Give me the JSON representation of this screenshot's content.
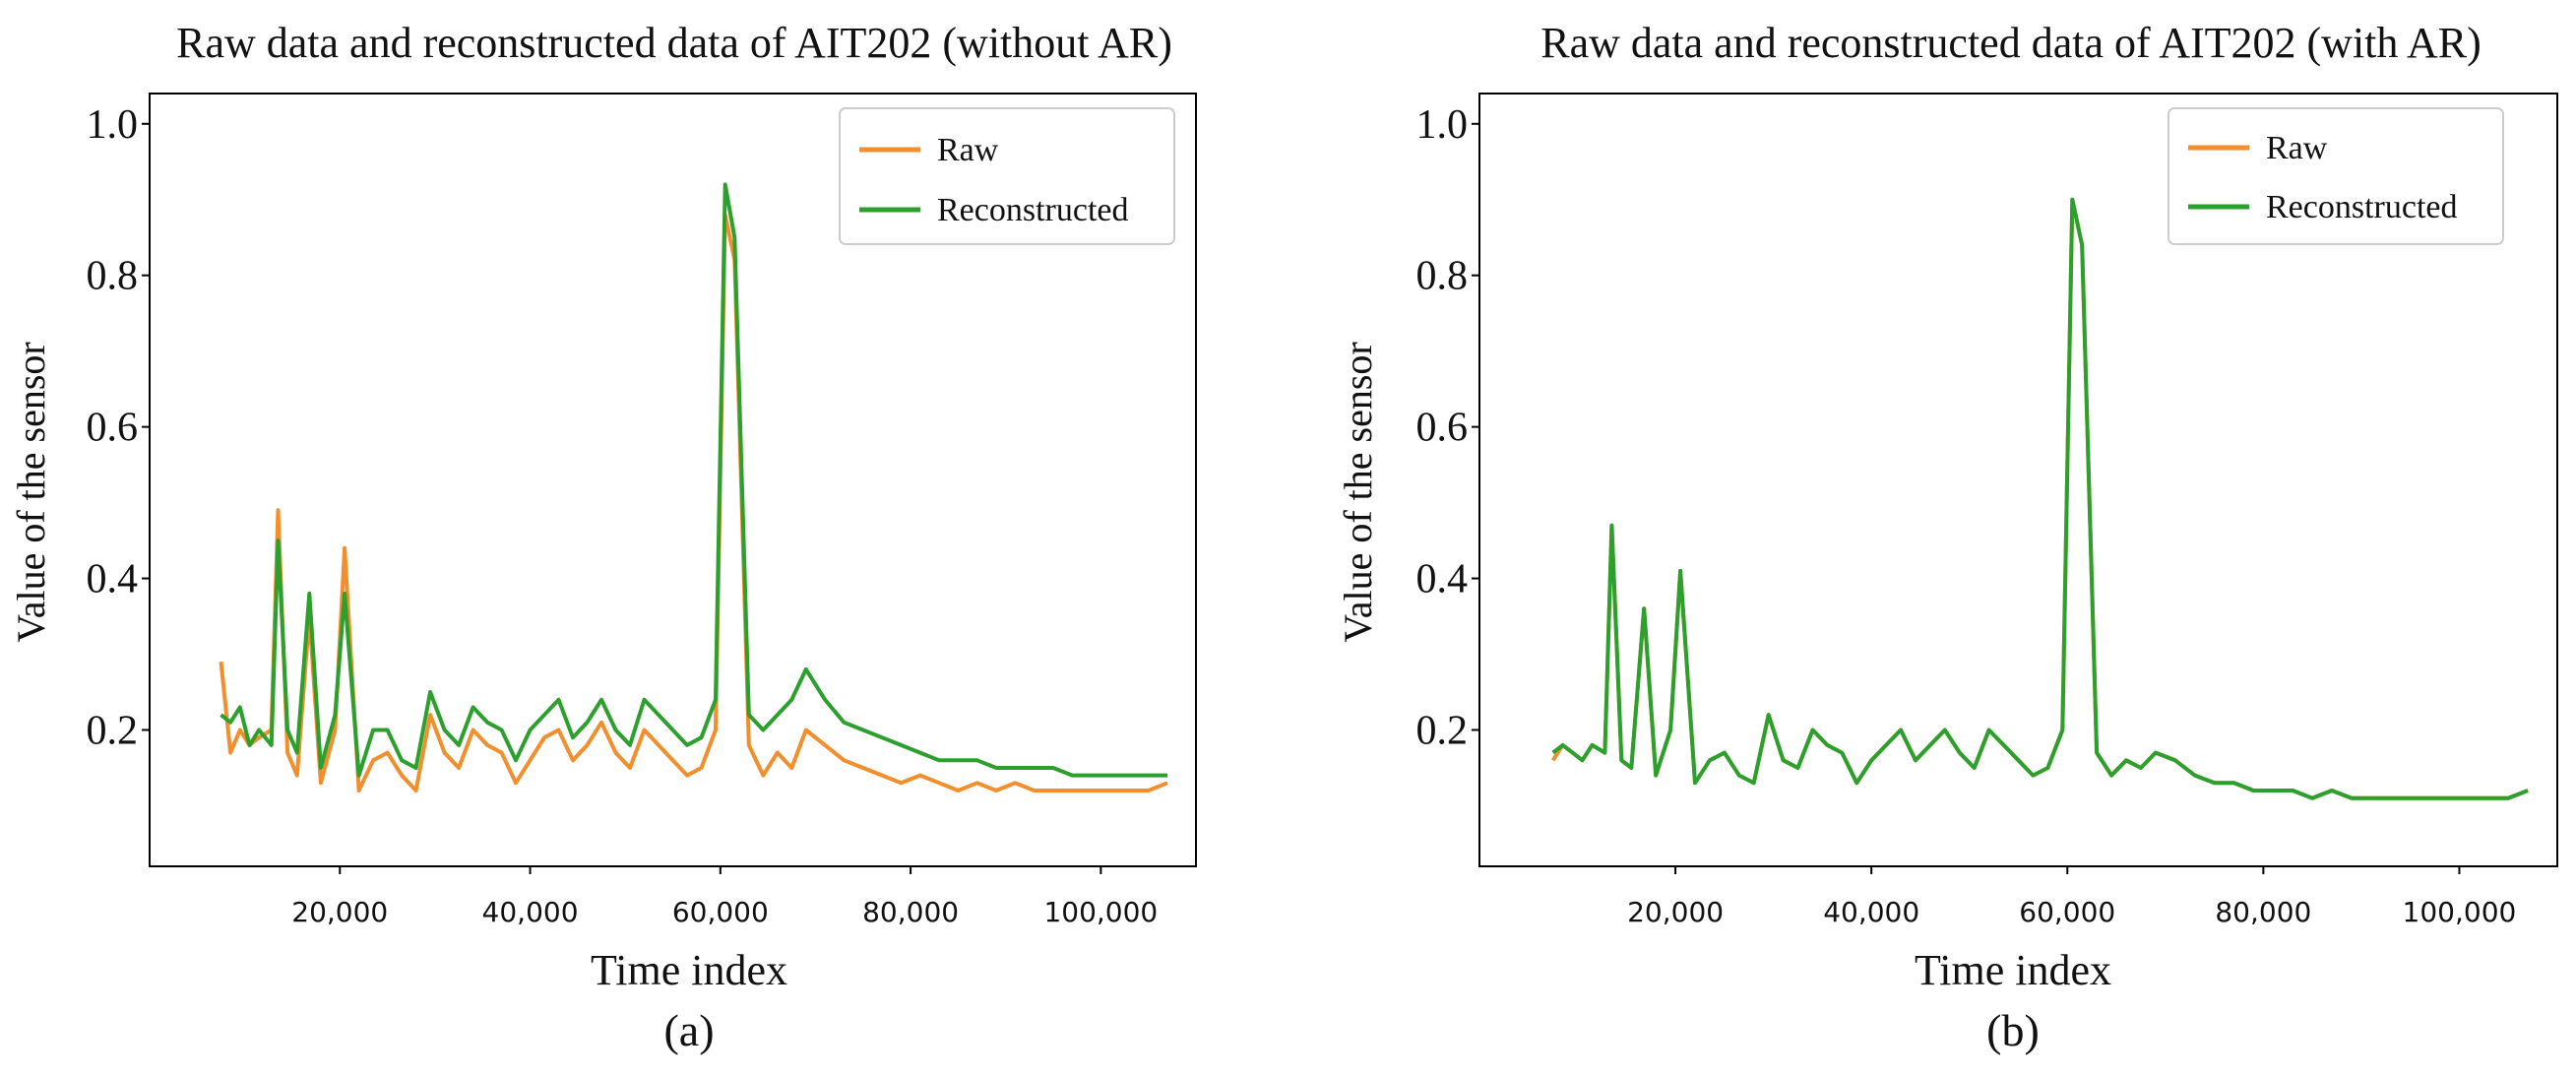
{
  "chart_data": [
    {
      "type": "line",
      "title": "Raw data and reconstructed data of AIT202 (without AR)",
      "xlabel": "Time index",
      "ylabel": "Value of the sensor",
      "caption": "(a)",
      "xlim": [
        0,
        110000
      ],
      "ylim": [
        0.02,
        1.04
      ],
      "xticks": [
        20000,
        40000,
        60000,
        80000,
        100000
      ],
      "xtick_labels": [
        "20,000",
        "40,000",
        "60,000",
        "80,000",
        "100,000"
      ],
      "yticks": [
        0.2,
        0.4,
        0.6,
        0.8,
        1.0
      ],
      "ytick_labels": [
        "0.2",
        "0.4",
        "0.6",
        "0.8",
        "1.0"
      ],
      "legend_position": "top-right",
      "series": [
        {
          "name": "Raw",
          "color": "#f28e2b",
          "x": [
            7500,
            8500,
            9500,
            10500,
            11500,
            12800,
            13500,
            14500,
            15500,
            16800,
            18000,
            19500,
            20500,
            22000,
            23500,
            25000,
            26500,
            28000,
            29500,
            31000,
            32500,
            34000,
            35500,
            37000,
            38500,
            40000,
            41500,
            43000,
            44500,
            46000,
            47500,
            49000,
            50500,
            52000,
            53500,
            55000,
            56500,
            58000,
            59500,
            60500,
            61500,
            63000,
            64500,
            66000,
            67500,
            69000,
            71000,
            73000,
            75000,
            77000,
            79000,
            81000,
            83000,
            85000,
            87000,
            89000,
            91000,
            93000,
            95000,
            97000,
            99000,
            101000,
            103000,
            105000,
            107000
          ],
          "y": [
            0.29,
            0.17,
            0.2,
            0.18,
            0.19,
            0.2,
            0.49,
            0.17,
            0.14,
            0.35,
            0.13,
            0.2,
            0.44,
            0.12,
            0.16,
            0.17,
            0.14,
            0.12,
            0.22,
            0.17,
            0.15,
            0.2,
            0.18,
            0.17,
            0.13,
            0.16,
            0.19,
            0.2,
            0.16,
            0.18,
            0.21,
            0.17,
            0.15,
            0.2,
            0.18,
            0.16,
            0.14,
            0.15,
            0.2,
            0.88,
            0.82,
            0.18,
            0.14,
            0.17,
            0.15,
            0.2,
            0.18,
            0.16,
            0.15,
            0.14,
            0.13,
            0.14,
            0.13,
            0.12,
            0.13,
            0.12,
            0.13,
            0.12,
            0.12,
            0.12,
            0.12,
            0.12,
            0.12,
            0.12,
            0.13
          ]
        },
        {
          "name": "Reconstructed",
          "color": "#2ca02c",
          "x": [
            7500,
            8500,
            9500,
            10500,
            11500,
            12800,
            13500,
            14500,
            15500,
            16800,
            18000,
            19500,
            20500,
            22000,
            23500,
            25000,
            26500,
            28000,
            29500,
            31000,
            32500,
            34000,
            35500,
            37000,
            38500,
            40000,
            41500,
            43000,
            44500,
            46000,
            47500,
            49000,
            50500,
            52000,
            53500,
            55000,
            56500,
            58000,
            59500,
            60500,
            61500,
            63000,
            64500,
            66000,
            67500,
            69000,
            71000,
            73000,
            75000,
            77000,
            79000,
            81000,
            83000,
            85000,
            87000,
            89000,
            91000,
            93000,
            95000,
            97000,
            99000,
            101000,
            103000,
            105000,
            107000
          ],
          "y": [
            0.22,
            0.21,
            0.23,
            0.18,
            0.2,
            0.18,
            0.45,
            0.2,
            0.17,
            0.38,
            0.15,
            0.22,
            0.38,
            0.14,
            0.2,
            0.2,
            0.16,
            0.15,
            0.25,
            0.2,
            0.18,
            0.23,
            0.21,
            0.2,
            0.16,
            0.2,
            0.22,
            0.24,
            0.19,
            0.21,
            0.24,
            0.2,
            0.18,
            0.24,
            0.22,
            0.2,
            0.18,
            0.19,
            0.24,
            0.92,
            0.85,
            0.22,
            0.2,
            0.22,
            0.24,
            0.28,
            0.24,
            0.21,
            0.2,
            0.19,
            0.18,
            0.17,
            0.16,
            0.16,
            0.16,
            0.15,
            0.15,
            0.15,
            0.15,
            0.14,
            0.14,
            0.14,
            0.14,
            0.14,
            0.14
          ]
        }
      ]
    },
    {
      "type": "line",
      "title": "Raw data and reconstructed data of AIT202 (with AR)",
      "xlabel": "Time index",
      "ylabel": "Value of the sensor",
      "caption": "(b)",
      "xlim": [
        0,
        110000
      ],
      "ylim": [
        0.02,
        1.04
      ],
      "xticks": [
        20000,
        40000,
        60000,
        80000,
        100000
      ],
      "xtick_labels": [
        "20,000",
        "40,000",
        "60,000",
        "80,000",
        "100,000"
      ],
      "yticks": [
        0.2,
        0.4,
        0.6,
        0.8,
        1.0
      ],
      "ytick_labels": [
        "0.2",
        "0.4",
        "0.6",
        "0.8",
        "1.0"
      ],
      "legend_position": "top-right",
      "series": [
        {
          "name": "Raw",
          "color": "#f28e2b",
          "x": [
            7500,
            8500,
            9500,
            10500,
            11500,
            12800,
            13500,
            14500,
            15500,
            16800,
            18000,
            19500,
            20500,
            22000,
            23500,
            25000,
            26500,
            28000,
            29500,
            31000,
            32500,
            34000,
            35500,
            37000,
            38500,
            40000,
            41500,
            43000,
            44500,
            46000,
            47500,
            49000,
            50500,
            52000,
            53500,
            55000,
            56500,
            58000,
            59500,
            60500,
            61500,
            63000,
            64500,
            66000,
            67500,
            69000,
            71000,
            73000,
            75000,
            77000,
            79000,
            81000,
            83000,
            85000,
            87000,
            89000,
            91000,
            93000,
            95000,
            97000,
            99000,
            101000,
            103000,
            105000,
            107000
          ],
          "y": [
            0.16,
            0.18,
            0.17,
            0.16,
            0.18,
            0.17,
            0.47,
            0.16,
            0.15,
            0.36,
            0.14,
            0.2,
            0.41,
            0.13,
            0.16,
            0.17,
            0.14,
            0.13,
            0.22,
            0.16,
            0.15,
            0.2,
            0.18,
            0.17,
            0.13,
            0.16,
            0.18,
            0.2,
            0.16,
            0.18,
            0.2,
            0.17,
            0.15,
            0.2,
            0.18,
            0.16,
            0.14,
            0.15,
            0.2,
            0.9,
            0.84,
            0.17,
            0.14,
            0.16,
            0.15,
            0.17,
            0.16,
            0.14,
            0.13,
            0.13,
            0.12,
            0.12,
            0.12,
            0.11,
            0.12,
            0.11,
            0.11,
            0.11,
            0.11,
            0.11,
            0.11,
            0.11,
            0.11,
            0.11,
            0.12
          ]
        },
        {
          "name": "Reconstructed",
          "color": "#2ca02c",
          "x": [
            7500,
            8500,
            9500,
            10500,
            11500,
            12800,
            13500,
            14500,
            15500,
            16800,
            18000,
            19500,
            20500,
            22000,
            23500,
            25000,
            26500,
            28000,
            29500,
            31000,
            32500,
            34000,
            35500,
            37000,
            38500,
            40000,
            41500,
            43000,
            44500,
            46000,
            47500,
            49000,
            50500,
            52000,
            53500,
            55000,
            56500,
            58000,
            59500,
            60500,
            61500,
            63000,
            64500,
            66000,
            67500,
            69000,
            71000,
            73000,
            75000,
            77000,
            79000,
            81000,
            83000,
            85000,
            87000,
            89000,
            91000,
            93000,
            95000,
            97000,
            99000,
            101000,
            103000,
            105000,
            107000
          ],
          "y": [
            0.17,
            0.18,
            0.17,
            0.16,
            0.18,
            0.17,
            0.47,
            0.16,
            0.15,
            0.36,
            0.14,
            0.2,
            0.41,
            0.13,
            0.16,
            0.17,
            0.14,
            0.13,
            0.22,
            0.16,
            0.15,
            0.2,
            0.18,
            0.17,
            0.13,
            0.16,
            0.18,
            0.2,
            0.16,
            0.18,
            0.2,
            0.17,
            0.15,
            0.2,
            0.18,
            0.16,
            0.14,
            0.15,
            0.2,
            0.9,
            0.84,
            0.17,
            0.14,
            0.16,
            0.15,
            0.17,
            0.16,
            0.14,
            0.13,
            0.13,
            0.12,
            0.12,
            0.12,
            0.11,
            0.12,
            0.11,
            0.11,
            0.11,
            0.11,
            0.11,
            0.11,
            0.11,
            0.11,
            0.11,
            0.12
          ]
        }
      ]
    }
  ]
}
